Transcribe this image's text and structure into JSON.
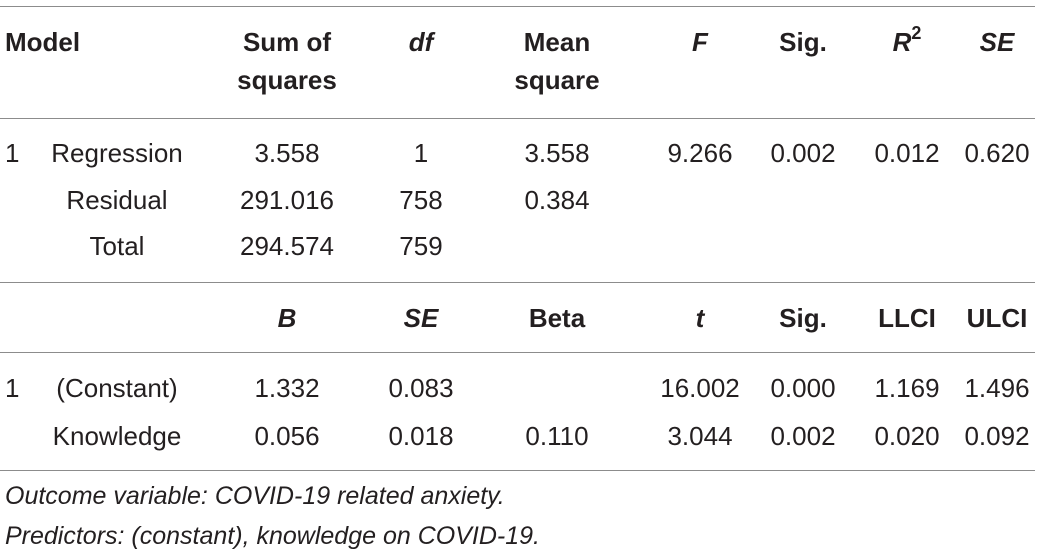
{
  "anova": {
    "headers": {
      "model": "Model",
      "ss_line1": "Sum of",
      "ss_line2": "squares",
      "df": "df",
      "ms_line1": "Mean",
      "ms_line2": "square",
      "f": "F",
      "sig": "Sig.",
      "r2_base": "R",
      "r2_exp": "2",
      "se": "SE"
    },
    "model_number": "1",
    "rows": [
      {
        "label": "Regression",
        "ss": "3.558",
        "df": "1",
        "ms": "3.558",
        "f": "9.266",
        "sig": "0.002",
        "r2": "0.012",
        "se": "0.620"
      },
      {
        "label": "Residual",
        "ss": "291.016",
        "df": "758",
        "ms": "0.384"
      },
      {
        "label": "Total",
        "ss": "294.574",
        "df": "759"
      }
    ]
  },
  "coefficients": {
    "headers": {
      "b": "B",
      "se": "SE",
      "beta": "Beta",
      "t": "t",
      "sig": "Sig.",
      "llci": "LLCI",
      "ulci": "ULCI"
    },
    "model_number": "1",
    "rows": [
      {
        "label": "(Constant)",
        "b": "1.332",
        "se": "0.083",
        "beta": "",
        "t": "16.002",
        "sig": "0.000",
        "llci": "1.169",
        "ulci": "1.496"
      },
      {
        "label": "Knowledge",
        "b": "0.056",
        "se": "0.018",
        "beta": "0.110",
        "t": "3.044",
        "sig": "0.002",
        "llci": "0.020",
        "ulci": "0.092"
      }
    ]
  },
  "notes": [
    "Outcome variable: COVID-19 related anxiety.",
    "Predictors: (constant), knowledge on COVID-19."
  ]
}
